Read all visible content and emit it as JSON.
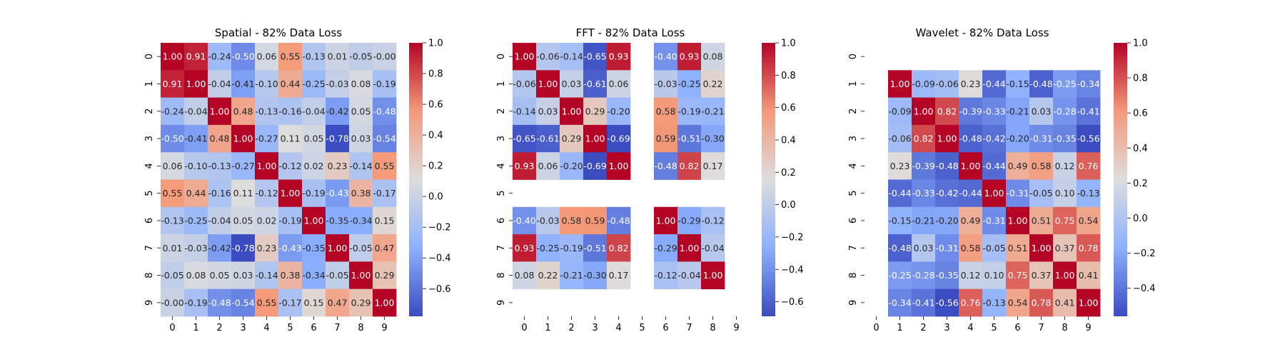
{
  "chart_data": [
    {
      "type": "heatmap",
      "title": "Spatial - 82% Data Loss",
      "x_labels": [
        "0",
        "1",
        "2",
        "3",
        "4",
        "5",
        "6",
        "7",
        "8",
        "9"
      ],
      "y_labels": [
        "0",
        "1",
        "2",
        "3",
        "4",
        "5",
        "6",
        "7",
        "8",
        "9"
      ],
      "value_format": "0.00",
      "matrix": [
        [
          1.0,
          0.91,
          -0.24,
          -0.5,
          0.06,
          0.55,
          -0.13,
          0.01,
          -0.05,
          -0.0
        ],
        [
          0.91,
          1.0,
          -0.04,
          -0.41,
          -0.1,
          0.44,
          -0.25,
          -0.03,
          0.08,
          -0.19
        ],
        [
          -0.24,
          -0.04,
          1.0,
          0.48,
          -0.13,
          -0.16,
          -0.04,
          -0.42,
          0.05,
          -0.48
        ],
        [
          -0.5,
          -0.41,
          0.48,
          1.0,
          -0.27,
          0.11,
          0.05,
          -0.78,
          0.03,
          -0.54
        ],
        [
          0.06,
          -0.1,
          -0.13,
          -0.27,
          1.0,
          -0.12,
          0.02,
          0.23,
          -0.14,
          0.55
        ],
        [
          0.55,
          0.44,
          -0.16,
          0.11,
          -0.12,
          1.0,
          -0.19,
          -0.43,
          0.38,
          -0.17
        ],
        [
          -0.13,
          -0.25,
          -0.04,
          0.05,
          0.02,
          -0.19,
          1.0,
          -0.35,
          -0.34,
          0.15
        ],
        [
          0.01,
          -0.03,
          -0.42,
          -0.78,
          0.23,
          -0.43,
          -0.35,
          1.0,
          -0.05,
          0.47
        ],
        [
          -0.05,
          0.08,
          0.05,
          0.03,
          -0.14,
          0.38,
          -0.34,
          -0.05,
          1.0,
          0.29
        ],
        [
          -0.0,
          -0.19,
          -0.48,
          -0.54,
          0.55,
          -0.17,
          0.15,
          0.47,
          0.29,
          1.0
        ]
      ],
      "vmin": -0.78,
      "vmax": 1.0,
      "colorbar_ticks": [
        "1.0",
        "0.8",
        "0.6",
        "0.4",
        "0.2",
        "0.0",
        "−0.2",
        "−0.4",
        "−0.6"
      ],
      "colorbar_tick_values": [
        1.0,
        0.8,
        0.6,
        0.4,
        0.2,
        0.0,
        -0.2,
        -0.4,
        -0.6
      ],
      "colormap": "coolwarm"
    },
    {
      "type": "heatmap",
      "title": "FFT - 82% Data Loss",
      "x_labels": [
        "0",
        "1",
        "2",
        "3",
        "4",
        "5",
        "6",
        "7",
        "8",
        "9"
      ],
      "y_labels": [
        "0",
        "1",
        "2",
        "3",
        "4",
        "5",
        "6",
        "7",
        "8",
        "9"
      ],
      "value_format": "0.00",
      "matrix": [
        [
          1.0,
          -0.06,
          -0.14,
          -0.65,
          0.93,
          null,
          -0.4,
          0.93,
          0.08,
          null
        ],
        [
          -0.06,
          1.0,
          0.03,
          -0.61,
          0.06,
          null,
          -0.03,
          -0.25,
          0.22,
          null
        ],
        [
          -0.14,
          0.03,
          1.0,
          0.29,
          -0.2,
          null,
          0.58,
          -0.19,
          -0.21,
          null
        ],
        [
          -0.65,
          -0.61,
          0.29,
          1.0,
          -0.69,
          null,
          0.59,
          -0.51,
          -0.3,
          null
        ],
        [
          0.93,
          0.06,
          -0.2,
          -0.69,
          1.0,
          null,
          -0.48,
          0.82,
          0.17,
          null
        ],
        [
          null,
          null,
          null,
          null,
          null,
          null,
          null,
          null,
          null,
          null
        ],
        [
          -0.4,
          -0.03,
          0.58,
          0.59,
          -0.48,
          null,
          1.0,
          -0.29,
          -0.12,
          null
        ],
        [
          0.93,
          -0.25,
          -0.19,
          -0.51,
          0.82,
          null,
          -0.29,
          1.0,
          -0.04,
          null
        ],
        [
          0.08,
          0.22,
          -0.21,
          -0.3,
          0.17,
          null,
          -0.12,
          -0.04,
          1.0,
          null
        ],
        [
          null,
          null,
          null,
          null,
          null,
          null,
          null,
          null,
          null,
          null
        ]
      ],
      "vmin": -0.69,
      "vmax": 1.0,
      "colorbar_ticks": [
        "1.0",
        "0.8",
        "0.6",
        "0.4",
        "0.2",
        "0.0",
        "−0.2",
        "−0.4",
        "−0.6"
      ],
      "colorbar_tick_values": [
        1.0,
        0.8,
        0.6,
        0.4,
        0.2,
        0.0,
        -0.2,
        -0.4,
        -0.6
      ],
      "colormap": "coolwarm"
    },
    {
      "type": "heatmap",
      "title": "Wavelet - 82% Data Loss",
      "x_labels": [
        "0",
        "1",
        "2",
        "3",
        "4",
        "5",
        "6",
        "7",
        "8",
        "9"
      ],
      "y_labels": [
        "0",
        "1",
        "2",
        "3",
        "4",
        "5",
        "6",
        "7",
        "8",
        "9"
      ],
      "value_format": "0.00",
      "matrix": [
        [
          null,
          null,
          null,
          null,
          null,
          null,
          null,
          null,
          null,
          null
        ],
        [
          null,
          1.0,
          -0.09,
          -0.06,
          0.23,
          -0.44,
          -0.15,
          -0.48,
          -0.25,
          -0.34
        ],
        [
          null,
          -0.09,
          1.0,
          0.82,
          -0.39,
          -0.33,
          -0.21,
          0.03,
          -0.28,
          -0.41
        ],
        [
          null,
          -0.06,
          0.82,
          1.0,
          -0.48,
          -0.42,
          -0.2,
          -0.31,
          -0.35,
          -0.56
        ],
        [
          null,
          0.23,
          -0.39,
          -0.48,
          1.0,
          -0.44,
          0.49,
          0.58,
          0.12,
          0.76
        ],
        [
          null,
          -0.44,
          -0.33,
          -0.42,
          -0.44,
          1.0,
          -0.31,
          -0.05,
          0.1,
          -0.13
        ],
        [
          null,
          -0.15,
          -0.21,
          -0.2,
          0.49,
          -0.31,
          1.0,
          0.51,
          0.75,
          0.54
        ],
        [
          null,
          -0.48,
          0.03,
          -0.31,
          0.58,
          -0.05,
          0.51,
          1.0,
          0.37,
          0.78
        ],
        [
          null,
          -0.25,
          -0.28,
          -0.35,
          0.12,
          0.1,
          0.75,
          0.37,
          1.0,
          0.41
        ],
        [
          null,
          -0.34,
          -0.41,
          -0.56,
          0.76,
          -0.13,
          0.54,
          0.78,
          0.41,
          1.0
        ]
      ],
      "vmin": -0.56,
      "vmax": 1.0,
      "colorbar_ticks": [
        "1.0",
        "0.8",
        "0.6",
        "0.4",
        "0.2",
        "0.0",
        "−0.2",
        "−0.4"
      ],
      "colorbar_tick_values": [
        1.0,
        0.8,
        0.6,
        0.4,
        0.2,
        0.0,
        -0.2,
        -0.4
      ],
      "colormap": "coolwarm"
    }
  ]
}
